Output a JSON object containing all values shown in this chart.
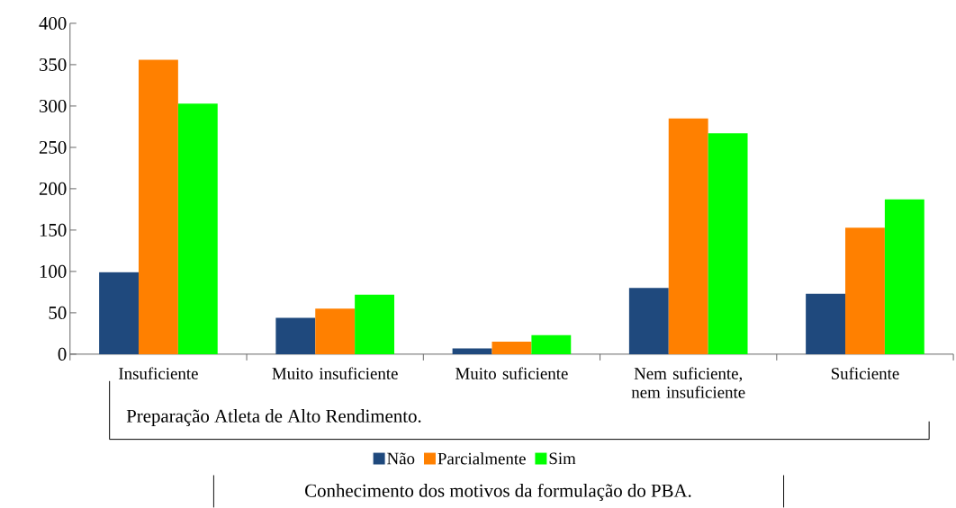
{
  "chart_data": {
    "type": "bar",
    "xlabel": "Preparação Atleta de Alto Rendimento.",
    "legend_title": "Conhecimento dos motivos da formulação do PBA.",
    "categories": [
      "Insuficiente",
      "Muito insuficiente",
      "Muito suficiente",
      "Nem suficiente, nem insuficiente",
      "Suficiente"
    ],
    "series": [
      {
        "name": "Não",
        "color": "#1f497d",
        "values": [
          99,
          44,
          7,
          80,
          73
        ]
      },
      {
        "name": "Parcialmente",
        "color": "#ff8000",
        "values": [
          356,
          55,
          15,
          285,
          153
        ]
      },
      {
        "name": "Sim",
        "color": "#00ff00",
        "values": [
          303,
          72,
          23,
          267,
          187
        ]
      }
    ],
    "ylim": [
      0,
      400
    ],
    "yticks": [
      0,
      50,
      100,
      150,
      200,
      250,
      300,
      350,
      400
    ],
    "legend": "bottom"
  }
}
